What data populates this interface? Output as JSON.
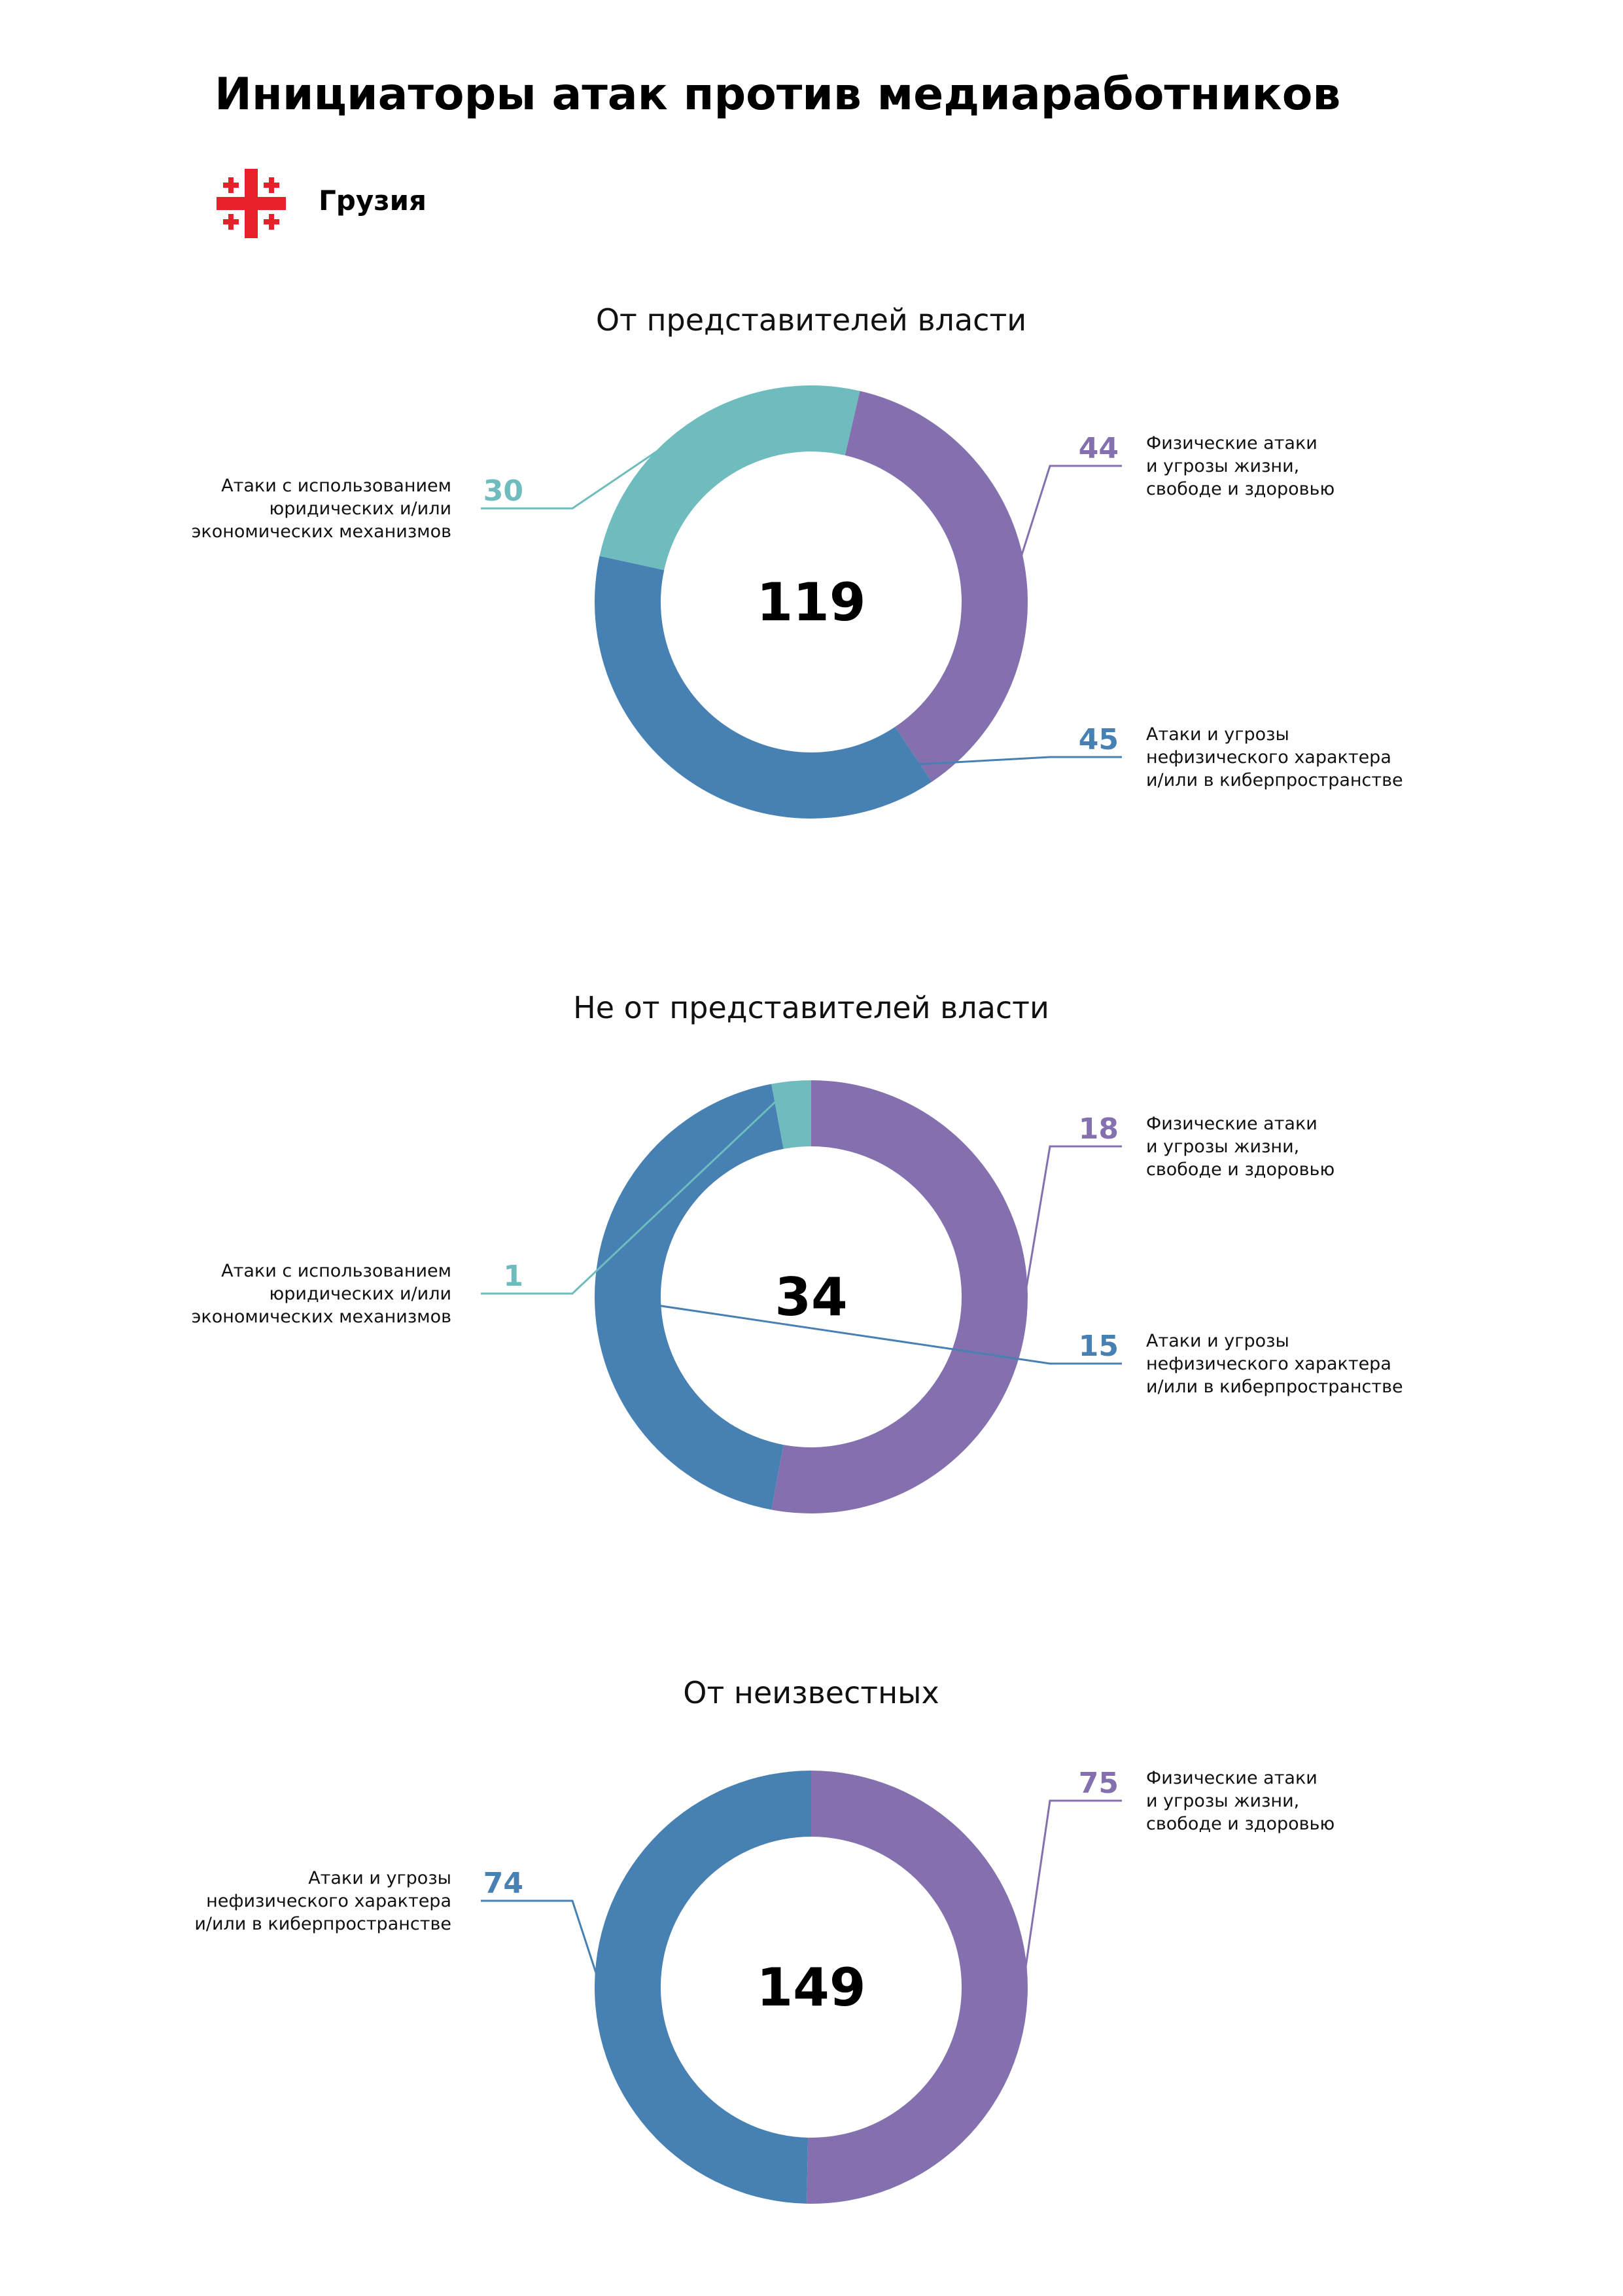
{
  "header": {
    "title": "Инициаторы атак против медиаработников",
    "country": "Грузия",
    "flag_icon": "georgia-flag-icon"
  },
  "colors": {
    "physical": "#8470AE",
    "nonphysical": "#4780B2",
    "legal": "#6EBCBE",
    "flag_red": "#E8202A"
  },
  "chart_data": [
    {
      "type": "donut",
      "title": "От представителей власти",
      "total": "119",
      "series": [
        {
          "name": "Физические атаки\nи угрозы жизни,\nсвободе и здоровью",
          "value": 44,
          "color_key": "physical",
          "label_side": "right"
        },
        {
          "name": "Атаки и угрозы\nнефизического характера\nи/или в киберпространстве",
          "value": 45,
          "color_key": "nonphysical",
          "label_side": "right"
        },
        {
          "name": "Атаки с использованием\nюридических и/или\nэкономических механизмов",
          "value": 30,
          "color_key": "legal",
          "label_side": "left"
        }
      ]
    },
    {
      "type": "donut",
      "title": "Не от представителей власти",
      "total": "34",
      "series": [
        {
          "name": "Физические атаки\nи угрозы жизни,\nсвободе и здоровью",
          "value": 18,
          "color_key": "physical",
          "label_side": "right"
        },
        {
          "name": "Атаки и угрозы\nнефизического характера\nи/или в киберпространстве",
          "value": 15,
          "color_key": "nonphysical",
          "label_side": "right"
        },
        {
          "name": "Атаки с использованием\nюридических и/или\nэкономических механизмов",
          "value": 1,
          "color_key": "legal",
          "label_side": "left"
        }
      ]
    },
    {
      "type": "donut",
      "title": "От неизвестных",
      "total": "149",
      "series": [
        {
          "name": "Физические атаки\nи угрозы жизни,\nсвободе и здоровью",
          "value": 75,
          "color_key": "physical",
          "label_side": "right"
        },
        {
          "name": "Атаки и угрозы\nнефизического характера\nи/или в киберпространстве",
          "value": 74,
          "color_key": "nonphysical",
          "label_side": "left"
        }
      ]
    }
  ]
}
